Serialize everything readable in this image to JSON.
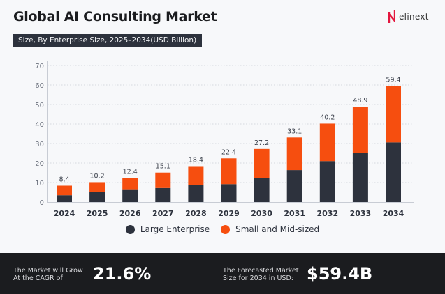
{
  "header": {
    "title": "Global AI Consulting Market",
    "subtitle": "Size, By Enterprise Size, 2025–2034(USD Billion)",
    "logo_text": "elinext"
  },
  "chart_data": {
    "type": "bar",
    "stacked": true,
    "title": "Global AI Consulting Market",
    "subtitle": "Size, By Enterprise Size, 2025–2034(USD Billion)",
    "categories": [
      "2024",
      "2025",
      "2026",
      "2027",
      "2028",
      "2029",
      "2030",
      "2031",
      "2032",
      "2033",
      "2034"
    ],
    "totals": [
      "8.4",
      "10.2",
      "12.4",
      "15.1",
      "18.4",
      "22.4",
      "27.2",
      "33.1",
      "40.2",
      "48.9",
      "59.4"
    ],
    "series": [
      {
        "name": "Large Enterprise",
        "color": "#2d323d",
        "values": [
          3.5,
          5.0,
          6.2,
          7.2,
          8.7,
          9.2,
          12.5,
          16.4,
          21.0,
          25.0,
          30.6
        ]
      },
      {
        "name": "Small and Mid-sized",
        "color": "#f64e0f",
        "values": [
          4.9,
          5.2,
          6.2,
          7.9,
          9.7,
          13.2,
          14.7,
          16.7,
          19.2,
          23.9,
          28.8
        ]
      }
    ],
    "yticks": [
      "0",
      "10",
      "20",
      "30",
      "40",
      "50",
      "60",
      "70"
    ],
    "ylim": [
      0,
      70
    ],
    "grid": true,
    "legend": "bottom"
  },
  "footer": {
    "cagr_label": "The Market will Grow\nAt the CAGR of",
    "cagr_value": "21.6%",
    "forecast_label": "The Forecasted Market\nSize for 2034 in USD:",
    "forecast_value": "$59.4B"
  }
}
